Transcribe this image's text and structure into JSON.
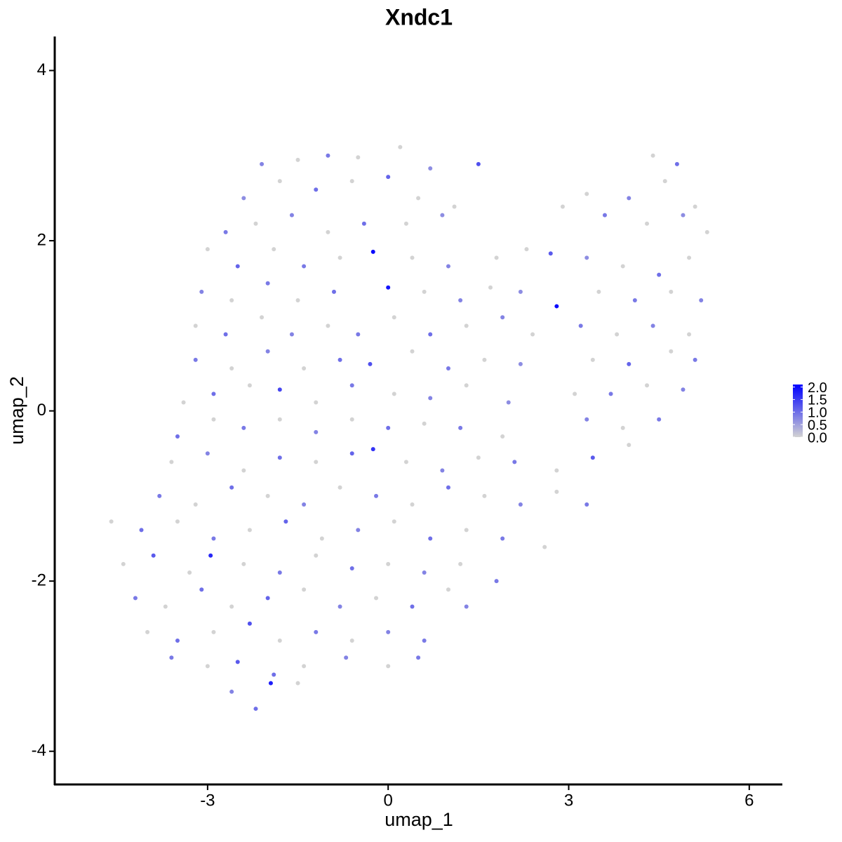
{
  "chart_data": {
    "type": "scatter",
    "title": "Xndc1",
    "x_label": "umap_1",
    "y_label": "umap_2",
    "xlim": [
      -5.54,
      6.55
    ],
    "ylim": [
      -4.39,
      4.4
    ],
    "xticks": [
      -3,
      0,
      3,
      6
    ],
    "yticks": [
      -4,
      -2,
      0,
      2,
      4
    ],
    "low_color": "#d3d3d3",
    "high_color": "#0000ff",
    "clim": [
      0,
      2.1
    ],
    "cticks": [
      {
        "value": 0,
        "label": "0.0"
      },
      {
        "value": 0.5,
        "label": "0.5"
      },
      {
        "value": 1,
        "label": "1.0"
      },
      {
        "value": 1.5,
        "label": "1.5"
      },
      {
        "value": 2,
        "label": "2.0"
      }
    ],
    "x": [
      -2.1,
      -1.5,
      -1.0,
      -0.5,
      0.2,
      0.7,
      1.5,
      4.4,
      4.8,
      -2.4,
      -1.8,
      -1.2,
      -0.6,
      0,
      0.5,
      1.1,
      3.3,
      4.0,
      4.6,
      5.1,
      -2.7,
      -2.2,
      -1.6,
      -1.0,
      -0.4,
      0.3,
      0.9,
      2.9,
      3.6,
      4.3,
      4.9,
      5.3,
      -3.0,
      -2.5,
      -1.9,
      -1.4,
      -0.8,
      -0.25,
      0.4,
      1.0,
      1.8,
      2.3,
      2.7,
      3.3,
      3.9,
      4.5,
      5.0,
      -3.1,
      -2.6,
      -2.0,
      -1.5,
      -0.9,
      0,
      0.6,
      1.2,
      1.7,
      2.2,
      2.8,
      3.5,
      4.1,
      4.7,
      5.2,
      -3.2,
      -2.7,
      -2.1,
      -1.6,
      -1.0,
      -0.5,
      0.1,
      0.7,
      1.3,
      1.9,
      2.4,
      3.2,
      3.8,
      4.4,
      5.0,
      -3.2,
      -2.6,
      -2.0,
      -1.4,
      -0.8,
      -0.3,
      0.4,
      1.0,
      1.6,
      2.2,
      3.4,
      4.0,
      4.7,
      5.1,
      -3.4,
      -2.9,
      -2.3,
      -1.8,
      -1.2,
      -0.6,
      0.1,
      0.7,
      1.3,
      2.0,
      3.1,
      3.7,
      4.3,
      4.9,
      -3.5,
      -2.9,
      -2.4,
      -1.8,
      -1.2,
      -0.6,
      0,
      0.6,
      1.2,
      1.9,
      3.3,
      3.9,
      4.5,
      -3.6,
      -3.0,
      -2.4,
      -1.8,
      -1.2,
      -0.6,
      -0.25,
      0.3,
      0.9,
      1.5,
      2.1,
      2.8,
      3.4,
      4.0,
      -3.8,
      -3.2,
      -2.6,
      -2.0,
      -1.4,
      -0.8,
      -0.2,
      0.4,
      1.0,
      1.6,
      2.2,
      2.8,
      3.3,
      -4.6,
      -4.1,
      -3.5,
      -2.9,
      -2.3,
      -1.7,
      -1.1,
      -0.5,
      0.1,
      0.7,
      1.3,
      1.9,
      2.6,
      -4.4,
      -3.9,
      -3.3,
      -2.95,
      -2.4,
      -1.8,
      -1.2,
      -0.6,
      0,
      0.6,
      1.2,
      1.8,
      -4.2,
      -3.7,
      -3.1,
      -2.6,
      -2.0,
      -1.4,
      -0.8,
      -0.2,
      0.4,
      1.0,
      1.3,
      -4.0,
      -3.5,
      -2.9,
      -2.3,
      -1.8,
      -1.2,
      -0.6,
      0,
      0.6,
      -3.6,
      -3.0,
      -2.5,
      -1.9,
      -1.4,
      -0.7,
      0,
      0.5,
      -2.6,
      -2.2,
      -1.95,
      -1.5
    ],
    "y": [
      2.9,
      2.95,
      3.0,
      2.98,
      3.1,
      2.85,
      2.9,
      3.0,
      2.9,
      2.5,
      2.7,
      2.6,
      2.7,
      2.75,
      2.5,
      2.4,
      2.55,
      2.5,
      2.7,
      2.4,
      2.1,
      2.2,
      2.3,
      2.1,
      2.2,
      2.2,
      2.3,
      2.4,
      2.3,
      2.2,
      2.3,
      2.1,
      1.9,
      1.7,
      1.9,
      1.7,
      1.8,
      1.87,
      1.8,
      1.7,
      1.8,
      1.9,
      1.85,
      1.8,
      1.7,
      1.6,
      1.8,
      1.4,
      1.3,
      1.5,
      1.3,
      1.4,
      1.45,
      1.4,
      1.3,
      1.45,
      1.4,
      1.23,
      1.4,
      1.3,
      1.4,
      1.3,
      1.0,
      0.9,
      1.1,
      0.9,
      1.0,
      0.9,
      1.1,
      0.9,
      1.0,
      1.1,
      0.9,
      1.0,
      0.9,
      1.0,
      0.9,
      0.6,
      0.5,
      0.7,
      0.5,
      0.6,
      0.55,
      0.7,
      0.5,
      0.6,
      0.55,
      0.6,
      0.55,
      0.7,
      0.6,
      0.1,
      0.2,
      0.3,
      0.25,
      0.1,
      0.3,
      0.2,
      0.15,
      0.3,
      0.1,
      0.2,
      0.2,
      0.3,
      0.25,
      -0.3,
      -0.1,
      -0.2,
      -0.1,
      -0.25,
      -0.1,
      -0.2,
      -0.15,
      -0.2,
      -0.3,
      -0.1,
      -0.2,
      -0.1,
      -0.6,
      -0.5,
      -0.7,
      -0.55,
      -0.6,
      -0.5,
      -0.45,
      -0.6,
      -0.7,
      -0.55,
      -0.6,
      -0.7,
      -0.55,
      -0.4,
      -1.0,
      -1.1,
      -0.9,
      -1.0,
      -1.1,
      -0.9,
      -1.0,
      -1.1,
      -0.9,
      -1.0,
      -1.1,
      -0.95,
      -1.1,
      -1.3,
      -1.4,
      -1.3,
      -1.5,
      -1.4,
      -1.3,
      -1.5,
      -1.4,
      -1.3,
      -1.5,
      -1.4,
      -1.5,
      -1.6,
      -1.8,
      -1.7,
      -1.9,
      -1.7,
      -1.8,
      -1.9,
      -1.7,
      -1.85,
      -1.8,
      -1.9,
      -1.8,
      -2.0,
      -2.2,
      -2.3,
      -2.1,
      -2.3,
      -2.2,
      -2.1,
      -2.3,
      -2.2,
      -2.3,
      -2.1,
      -2.3,
      -2.6,
      -2.7,
      -2.6,
      -2.5,
      -2.7,
      -2.6,
      -2.7,
      -2.6,
      -2.7,
      -2.9,
      -3.0,
      -2.95,
      -3.1,
      -3.0,
      -2.9,
      -3.0,
      -2.9,
      -3.3,
      -3.5,
      -3.2,
      -3.2
    ],
    "values": [
      0.8,
      0,
      0.9,
      0,
      0,
      0.7,
      1.3,
      0,
      1.0,
      0.7,
      0,
      1.0,
      0,
      1.1,
      0,
      0,
      0,
      0.8,
      0,
      0,
      0.9,
      0,
      0.8,
      0,
      1.0,
      0,
      0.7,
      0,
      0.9,
      0,
      0.7,
      0,
      0,
      1.1,
      0,
      0.9,
      0,
      2.0,
      0,
      0.8,
      0,
      0,
      1.2,
      0.7,
      0,
      1.0,
      0,
      0.8,
      0,
      0.9,
      0,
      1.0,
      1.9,
      0,
      0.8,
      0,
      0.7,
      2.0,
      0,
      0.9,
      0,
      0.8,
      0,
      1.0,
      0,
      0.8,
      0,
      0.9,
      0,
      1.0,
      0,
      0.8,
      0,
      0.9,
      0,
      0.8,
      0,
      0.9,
      0,
      0.8,
      0,
      1.0,
      1.3,
      0,
      0.9,
      0,
      0.7,
      0,
      1.1,
      0,
      0.9,
      0,
      1.0,
      0,
      1.4,
      0,
      0.9,
      0,
      0.8,
      0,
      0.7,
      0,
      0.9,
      0,
      0.8,
      1.0,
      0,
      0.9,
      0,
      0.8,
      0,
      1.0,
      0,
      0.9,
      0,
      0.8,
      0,
      0.9,
      0,
      0.8,
      0,
      1.0,
      0,
      1.1,
      1.6,
      0,
      0.8,
      0,
      0.9,
      0,
      1.2,
      0,
      0.9,
      0,
      1.0,
      0,
      0.8,
      0,
      0.9,
      0,
      1.0,
      0,
      0.8,
      0,
      0.9,
      0,
      1.0,
      0,
      0.9,
      0,
      1.1,
      0,
      0.8,
      0,
      1.0,
      0,
      0.9,
      0,
      0,
      1.2,
      0,
      1.7,
      0,
      0.9,
      0,
      1.0,
      0,
      0.8,
      0,
      0.9,
      0.9,
      0,
      1.0,
      0,
      1.1,
      0,
      0.8,
      0,
      1.0,
      0,
      0.8,
      0,
      1.0,
      0,
      1.3,
      0,
      0.9,
      0,
      0.8,
      0.9,
      0.9,
      0,
      1.2,
      1.0,
      0,
      0.8,
      0,
      0.9,
      0.8,
      1.0,
      1.8,
      0
    ]
  }
}
